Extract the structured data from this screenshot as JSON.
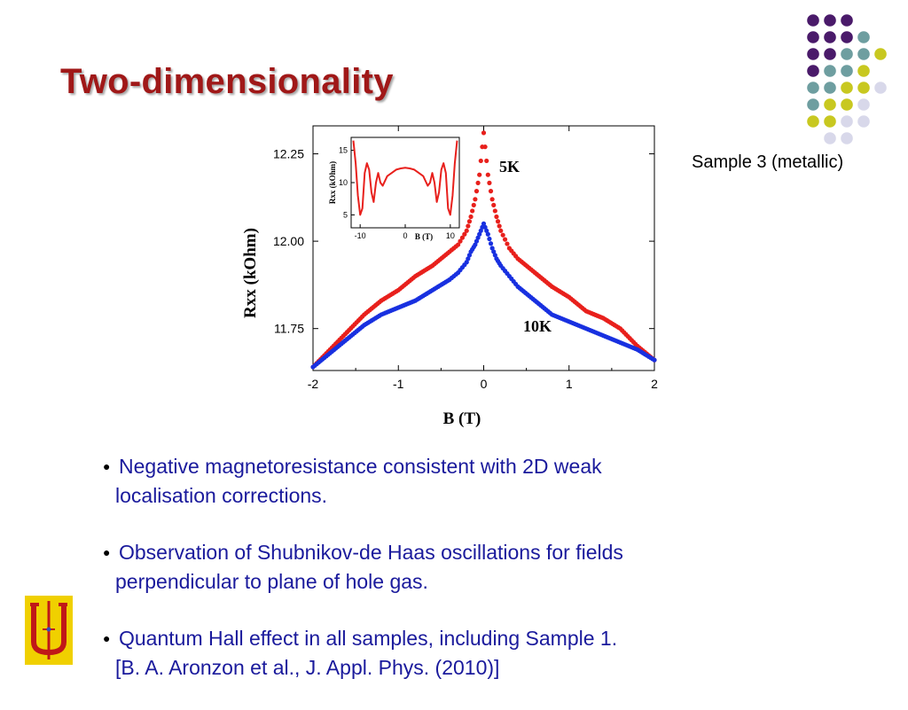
{
  "slide": {
    "title": "Two-dimensionality",
    "sample_label": "Sample 3 (metallic)",
    "bullets": [
      {
        "line1": "Negative magnetoresistance consistent with 2D weak",
        "line2": "localisation corrections."
      },
      {
        "line1": "Observation of Shubnikov-de Haas oscillations for fields",
        "line2": "perpendicular to plane of hole gas."
      },
      {
        "line1": "Quantum Hall effect in all samples, including Sample 1.",
        "line2": "[B. A. Aronzon et al., J. Appl. Phys. (2010)]"
      }
    ],
    "colors": {
      "title": "#a01818",
      "bullet_text": "#1a1a9c",
      "dot_purple": "#4a1a6a",
      "dot_teal": "#6e9ea0",
      "dot_yellow": "#c8c820",
      "dot_lavender": "#d8d8ea"
    }
  },
  "chart_data": [
    {
      "type": "scatter",
      "xlabel": "B (T)",
      "ylabel": "Rxx (kOhm)",
      "xlim": [
        -2,
        2
      ],
      "ylim": [
        11.63,
        12.33
      ],
      "xticks": [
        "-2",
        "-1",
        "0",
        "1",
        "2"
      ],
      "yticks": [
        "11.75",
        "12.00",
        "12.25"
      ],
      "ytick_values": [
        11.75,
        12.0,
        12.25
      ],
      "series": [
        {
          "name": "5K",
          "color": "#e8201c",
          "x": [
            -2,
            -1.8,
            -1.6,
            -1.4,
            -1.2,
            -1.0,
            -0.8,
            -0.6,
            -0.4,
            -0.3,
            -0.2,
            -0.15,
            -0.1,
            -0.05,
            0,
            0.05,
            0.1,
            0.15,
            0.2,
            0.3,
            0.4,
            0.6,
            0.8,
            1.0,
            1.2,
            1.4,
            1.6,
            1.8,
            2.0
          ],
          "y": [
            11.64,
            11.69,
            11.74,
            11.79,
            11.83,
            11.86,
            11.9,
            11.93,
            11.97,
            11.99,
            12.03,
            12.07,
            12.12,
            12.19,
            12.31,
            12.19,
            12.12,
            12.07,
            12.03,
            11.98,
            11.95,
            11.91,
            11.87,
            11.84,
            11.8,
            11.78,
            11.75,
            11.7,
            11.66
          ]
        },
        {
          "name": "10K",
          "color": "#1830e0",
          "x": [
            -2,
            -1.8,
            -1.6,
            -1.4,
            -1.2,
            -1.0,
            -0.8,
            -0.6,
            -0.4,
            -0.3,
            -0.2,
            -0.15,
            -0.1,
            -0.05,
            0,
            0.05,
            0.1,
            0.15,
            0.2,
            0.3,
            0.4,
            0.6,
            0.8,
            1.0,
            1.2,
            1.4,
            1.6,
            1.8,
            2.0
          ],
          "y": [
            11.64,
            11.68,
            11.72,
            11.76,
            11.79,
            11.81,
            11.83,
            11.86,
            11.89,
            11.91,
            11.94,
            11.97,
            11.99,
            12.02,
            12.05,
            12.02,
            11.98,
            11.95,
            11.93,
            11.9,
            11.87,
            11.83,
            11.79,
            11.77,
            11.75,
            11.73,
            11.71,
            11.69,
            11.66
          ]
        }
      ],
      "annotations": [
        "5K",
        "10K"
      ]
    },
    {
      "type": "line",
      "xlabel": "B (T)",
      "ylabel": "Rxx (kOhm)",
      "xlim": [
        -12,
        12
      ],
      "ylim": [
        3,
        17
      ],
      "xticks": [
        "-10",
        "0",
        "10"
      ],
      "yticks": [
        "5",
        "10",
        "15"
      ],
      "ytick_values": [
        5,
        10,
        15
      ],
      "series": [
        {
          "color": "#e8201c",
          "x": [
            -11.5,
            -11,
            -10.5,
            -10,
            -9.5,
            -9,
            -8.5,
            -8,
            -7.5,
            -7,
            -6.5,
            -6,
            -5.5,
            -5,
            -4,
            -3,
            -2,
            -1,
            0,
            1,
            2,
            3,
            4,
            5,
            5.5,
            6,
            6.5,
            7,
            7.5,
            8,
            8.5,
            9,
            9.5,
            10,
            10.5,
            11,
            11.5
          ],
          "y": [
            16.5,
            13,
            8,
            5,
            6,
            11.5,
            13,
            12,
            8.5,
            7,
            10,
            11.5,
            10,
            9.5,
            11,
            11.5,
            12,
            12.2,
            12.3,
            12.2,
            12,
            11.5,
            11,
            9.5,
            10,
            11.5,
            10,
            7,
            8.5,
            12,
            13,
            11.5,
            6,
            5,
            8,
            13,
            16.5
          ]
        }
      ]
    }
  ]
}
